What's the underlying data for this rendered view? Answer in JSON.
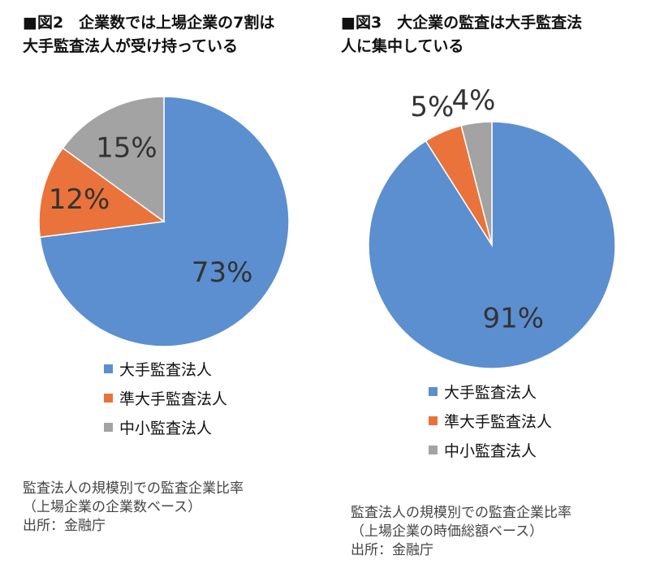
{
  "charts": {
    "left": {
      "title_lines": [
        "■図2　企業数では上場企業の7割は",
        "大手監査法人が受け持っている"
      ],
      "notes": [
        "監査法人の規模別での監査企業比率",
        "（上場企業の企業数ベース）",
        "出所：金融庁"
      ]
    },
    "right": {
      "title_lines": [
        "■図3　大企業の監査は大手監査法",
        "人に集中している"
      ],
      "notes": [
        "監査法人の規模別での監査企業比率",
        "（上場企業の時価総額ベース）",
        "出所：金融庁"
      ]
    }
  },
  "legend": [
    "大手監査法人",
    "準大手監査法人",
    "中小監査法人"
  ],
  "colors": {
    "large": "#5B8FD0",
    "mid": "#E9733A",
    "small": "#A3A3A3"
  },
  "chart_data": [
    {
      "type": "pie",
      "title": "■図2　企業数では上場企業の7割は大手監査法人が受け持っている",
      "categories": [
        "大手監査法人",
        "準大手監査法人",
        "中小監査法人"
      ],
      "values": [
        73,
        12,
        15
      ],
      "labels": [
        "73%",
        "12%",
        "15%"
      ],
      "legend_position": "bottom"
    },
    {
      "type": "pie",
      "title": "■図3　大企業の監査は大手監査法人に集中している",
      "categories": [
        "大手監査法人",
        "準大手監査法人",
        "中小監査法人"
      ],
      "values": [
        91,
        5,
        4
      ],
      "labels": [
        "91%",
        "5%",
        "4%"
      ],
      "legend_position": "bottom"
    }
  ]
}
